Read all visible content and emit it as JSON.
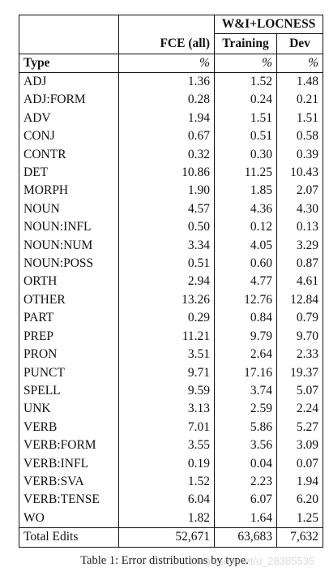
{
  "header": {
    "group_label": "W&I+LOCNESS",
    "col_fce": "FCE (all)",
    "col_training": "Training",
    "col_dev": "Dev",
    "type_label": "Type",
    "unit": "%"
  },
  "rows": [
    {
      "type": "ADJ",
      "fce": "1.36",
      "train": "1.52",
      "dev": "1.48"
    },
    {
      "type": "ADJ:FORM",
      "fce": "0.28",
      "train": "0.24",
      "dev": "0.21"
    },
    {
      "type": "ADV",
      "fce": "1.94",
      "train": "1.51",
      "dev": "1.51"
    },
    {
      "type": "CONJ",
      "fce": "0.67",
      "train": "0.51",
      "dev": "0.58"
    },
    {
      "type": "CONTR",
      "fce": "0.32",
      "train": "0.30",
      "dev": "0.39"
    },
    {
      "type": "DET",
      "fce": "10.86",
      "train": "11.25",
      "dev": "10.43"
    },
    {
      "type": "MORPH",
      "fce": "1.90",
      "train": "1.85",
      "dev": "2.07"
    },
    {
      "type": "NOUN",
      "fce": "4.57",
      "train": "4.36",
      "dev": "4.30"
    },
    {
      "type": "NOUN:INFL",
      "fce": "0.50",
      "train": "0.12",
      "dev": "0.13"
    },
    {
      "type": "NOUN:NUM",
      "fce": "3.34",
      "train": "4.05",
      "dev": "3.29"
    },
    {
      "type": "NOUN:POSS",
      "fce": "0.51",
      "train": "0.60",
      "dev": "0.87"
    },
    {
      "type": "ORTH",
      "fce": "2.94",
      "train": "4.77",
      "dev": "4.61"
    },
    {
      "type": "OTHER",
      "fce": "13.26",
      "train": "12.76",
      "dev": "12.84"
    },
    {
      "type": "PART",
      "fce": "0.29",
      "train": "0.84",
      "dev": "0.79"
    },
    {
      "type": "PREP",
      "fce": "11.21",
      "train": "9.79",
      "dev": "9.70"
    },
    {
      "type": "PRON",
      "fce": "3.51",
      "train": "2.64",
      "dev": "2.33"
    },
    {
      "type": "PUNCT",
      "fce": "9.71",
      "train": "17.16",
      "dev": "19.37"
    },
    {
      "type": "SPELL",
      "fce": "9.59",
      "train": "3.74",
      "dev": "5.07"
    },
    {
      "type": "UNK",
      "fce": "3.13",
      "train": "2.59",
      "dev": "2.24"
    },
    {
      "type": "VERB",
      "fce": "7.01",
      "train": "5.86",
      "dev": "5.27"
    },
    {
      "type": "VERB:FORM",
      "fce": "3.55",
      "train": "3.56",
      "dev": "3.09"
    },
    {
      "type": "VERB:INFL",
      "fce": "0.19",
      "train": "0.04",
      "dev": "0.07"
    },
    {
      "type": "VERB:SVA",
      "fce": "1.52",
      "train": "2.23",
      "dev": "1.94"
    },
    {
      "type": "VERB:TENSE",
      "fce": "6.04",
      "train": "6.07",
      "dev": "6.20"
    },
    {
      "type": "WO",
      "fce": "1.82",
      "train": "1.64",
      "dev": "1.25"
    }
  ],
  "total": {
    "label": "Total Edits",
    "fce": "52,671",
    "train": "63,683",
    "dev": "7,632"
  },
  "caption": "Table 1: Error distributions by type.",
  "watermark": "blog.csdn.net/u_28385535"
}
